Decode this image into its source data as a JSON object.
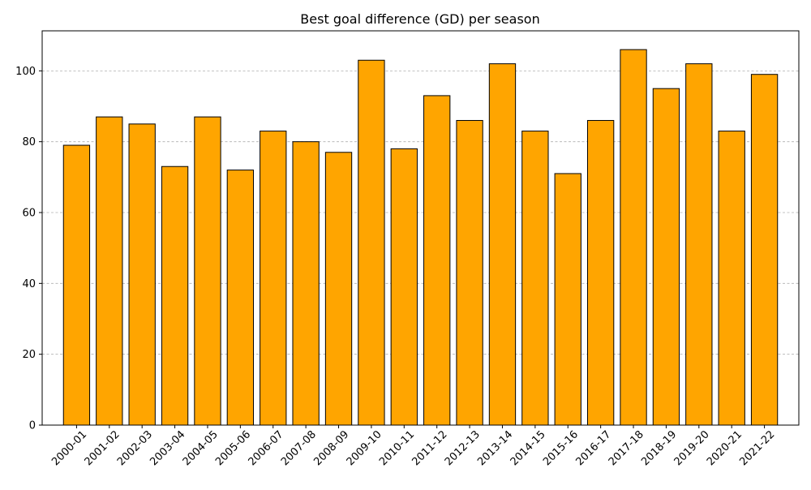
{
  "chart_data": {
    "type": "bar",
    "title": "Best goal difference (GD) per season",
    "xlabel": "",
    "ylabel": "",
    "categories": [
      "2000-01",
      "2001-02",
      "2002-03",
      "2003-04",
      "2004-05",
      "2005-06",
      "2006-07",
      "2007-08",
      "2008-09",
      "2009-10",
      "2010-11",
      "2011-12",
      "2012-13",
      "2013-14",
      "2014-15",
      "2015-16",
      "2016-17",
      "2017-18",
      "2018-19",
      "2019-20",
      "2020-21",
      "2021-22"
    ],
    "values": [
      79,
      87,
      85,
      73,
      87,
      72,
      83,
      80,
      77,
      103,
      78,
      93,
      86,
      102,
      83,
      71,
      86,
      106,
      95,
      102,
      83,
      99
    ],
    "ylim": [
      0,
      111.3
    ],
    "yticks": [
      0,
      20,
      40,
      60,
      80,
      100
    ],
    "grid": "y-dashed",
    "bar_color": "#ffa500",
    "edge_color": "#000000"
  }
}
